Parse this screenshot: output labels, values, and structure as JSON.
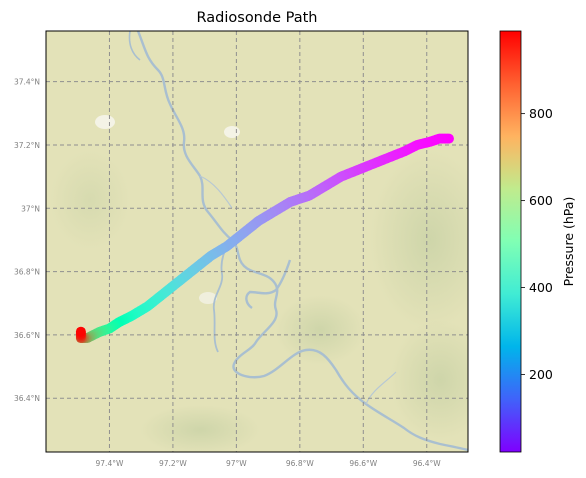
{
  "title": "Radiosonde Path",
  "map": {
    "lon_range": [
      -97.6,
      -96.27
    ],
    "lat_range": [
      36.23,
      37.56
    ],
    "lon_ticks": [
      {
        "value": -97.4,
        "label": "97.4°W"
      },
      {
        "value": -97.2,
        "label": "97.2°W"
      },
      {
        "value": -97.0,
        "label": "97°W"
      },
      {
        "value": -96.8,
        "label": "96.8°W"
      },
      {
        "value": -96.6,
        "label": "96.6°W"
      },
      {
        "value": -96.4,
        "label": "96.4°W"
      }
    ],
    "lat_ticks": [
      {
        "value": 37.4,
        "label": "37.4°N"
      },
      {
        "value": 37.2,
        "label": "37.2°N"
      },
      {
        "value": 37.0,
        "label": "37°N"
      },
      {
        "value": 36.8,
        "label": "36.8°N"
      },
      {
        "value": 36.6,
        "label": "36.6°N"
      },
      {
        "value": 36.4,
        "label": "36.4°N"
      }
    ],
    "gridlines": true,
    "basemap": "terrain",
    "colors": {
      "land": "#e3e2b8",
      "water": "#a9bfd0",
      "grid": "#8f8f8f",
      "tick_label": "#808080"
    }
  },
  "colorbar": {
    "label": "Pressure (hPa)",
    "range": [
      22,
      990
    ],
    "colormap": "rainbow",
    "ticks": [
      {
        "value": 200,
        "label": "200"
      },
      {
        "value": 400,
        "label": "400"
      },
      {
        "value": 600,
        "label": "600"
      },
      {
        "value": 800,
        "label": "800"
      }
    ]
  },
  "chart_data": {
    "type": "scatter",
    "x_name": "longitude",
    "y_name": "latitude",
    "color_name": "pressure",
    "points": [
      [
        -97.49,
        36.61,
        985
      ],
      [
        -97.49,
        36.6,
        960
      ],
      [
        -97.49,
        36.59,
        900
      ],
      [
        -97.48,
        36.59,
        820
      ],
      [
        -97.47,
        36.59,
        760
      ],
      [
        -97.45,
        36.6,
        680
      ],
      [
        -97.43,
        36.61,
        620
      ],
      [
        -97.4,
        36.62,
        560
      ],
      [
        -97.37,
        36.64,
        500
      ],
      [
        -97.33,
        36.66,
        450
      ],
      [
        -97.28,
        36.69,
        410
      ],
      [
        -97.23,
        36.73,
        370
      ],
      [
        -97.18,
        36.77,
        330
      ],
      [
        -97.13,
        36.81,
        300
      ],
      [
        -97.08,
        36.85,
        275
      ],
      [
        -97.03,
        36.88,
        255
      ],
      [
        -96.98,
        36.92,
        235
      ],
      [
        -96.93,
        36.96,
        215
      ],
      [
        -96.88,
        36.99,
        195
      ],
      [
        -96.83,
        37.02,
        175
      ],
      [
        -96.77,
        37.04,
        155
      ],
      [
        -96.72,
        37.07,
        135
      ],
      [
        -96.67,
        37.1,
        115
      ],
      [
        -96.62,
        37.12,
        95
      ],
      [
        -96.57,
        37.14,
        80
      ],
      [
        -96.52,
        37.16,
        65
      ],
      [
        -96.47,
        37.18,
        50
      ],
      [
        -96.43,
        37.2,
        40
      ],
      [
        -96.39,
        37.21,
        32
      ],
      [
        -96.36,
        37.22,
        27
      ],
      [
        -96.34,
        37.22,
        24
      ],
      [
        -96.33,
        37.22,
        22
      ]
    ]
  }
}
